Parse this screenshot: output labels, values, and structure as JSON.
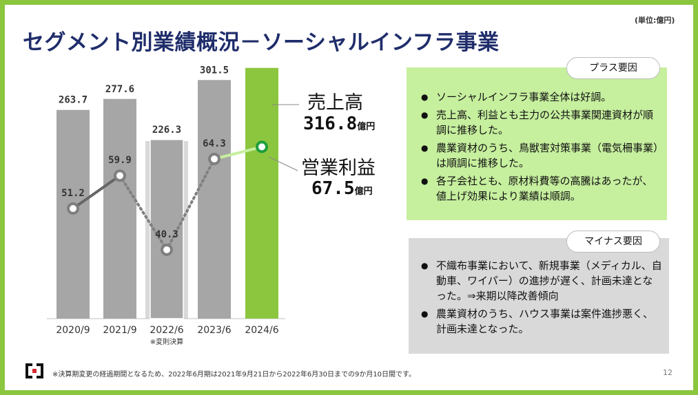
{
  "header": {
    "title": "セグメント別業績概況－ソーシャルインフラ事業",
    "unit": "(単位:億円)"
  },
  "chart_data": {
    "type": "bar+line",
    "categories": [
      "2020/9",
      "2021/9",
      "2022/6",
      "2023/6",
      "2024/6"
    ],
    "category_note": "※変則決算",
    "series": [
      {
        "name": "売上高",
        "kind": "bar",
        "values": [
          263.7,
          277.6,
          226.3,
          301.5,
          316.8
        ],
        "value_labels": [
          "263.7",
          "277.6",
          "226.3",
          "301.5",
          ""
        ]
      },
      {
        "name": "営業利益",
        "kind": "line",
        "values": [
          51.2,
          59.9,
          40.3,
          64.3,
          67.5
        ],
        "value_labels": [
          "51.2",
          "59.9",
          "40.3",
          "64.3",
          ""
        ]
      }
    ],
    "colors": {
      "bar": "#a6a6a6",
      "bar_highlight": "#8cc63f",
      "bar_irregular_bg": "#d9d9d9",
      "line": "#7f7f7f",
      "line_highlight": "#c6ef9e",
      "marker_highlight": "#1f9e3b"
    }
  },
  "callouts": {
    "revenue": {
      "title": "売上高",
      "value": "316.8",
      "unit": "億円"
    },
    "profit": {
      "title": "営業利益",
      "value": "67.5",
      "unit": "億円"
    }
  },
  "plus_factors": {
    "label": "プラス要因",
    "items": [
      "ソーシャルインフラ事業全体は好調。",
      "売上高、利益とも主力の公共事業関連資材が順調に推移した。",
      "農業資材のうち、鳥獣害対策事業（電気柵事業）は順調に推移した。",
      "各子会社とも、原材料費等の高騰はあったが、値上げ効果により業績は順調。"
    ]
  },
  "minus_factors": {
    "label": "マイナス要因",
    "items": [
      "不織布事業において、新規事業（メディカル、自動車、ワイパー）の進捗が遅く、計画未達となった。⇒来期以降改善傾向",
      "農業資材のうち、ハウス事業は案件進捗悪く、計画未達となった。"
    ]
  },
  "footer": {
    "footnote": "※決算期変更の経過期間となるため、2022年6月期は2021年9月21日から2022年6月30日までの9か月10日間です。",
    "page": "12"
  }
}
